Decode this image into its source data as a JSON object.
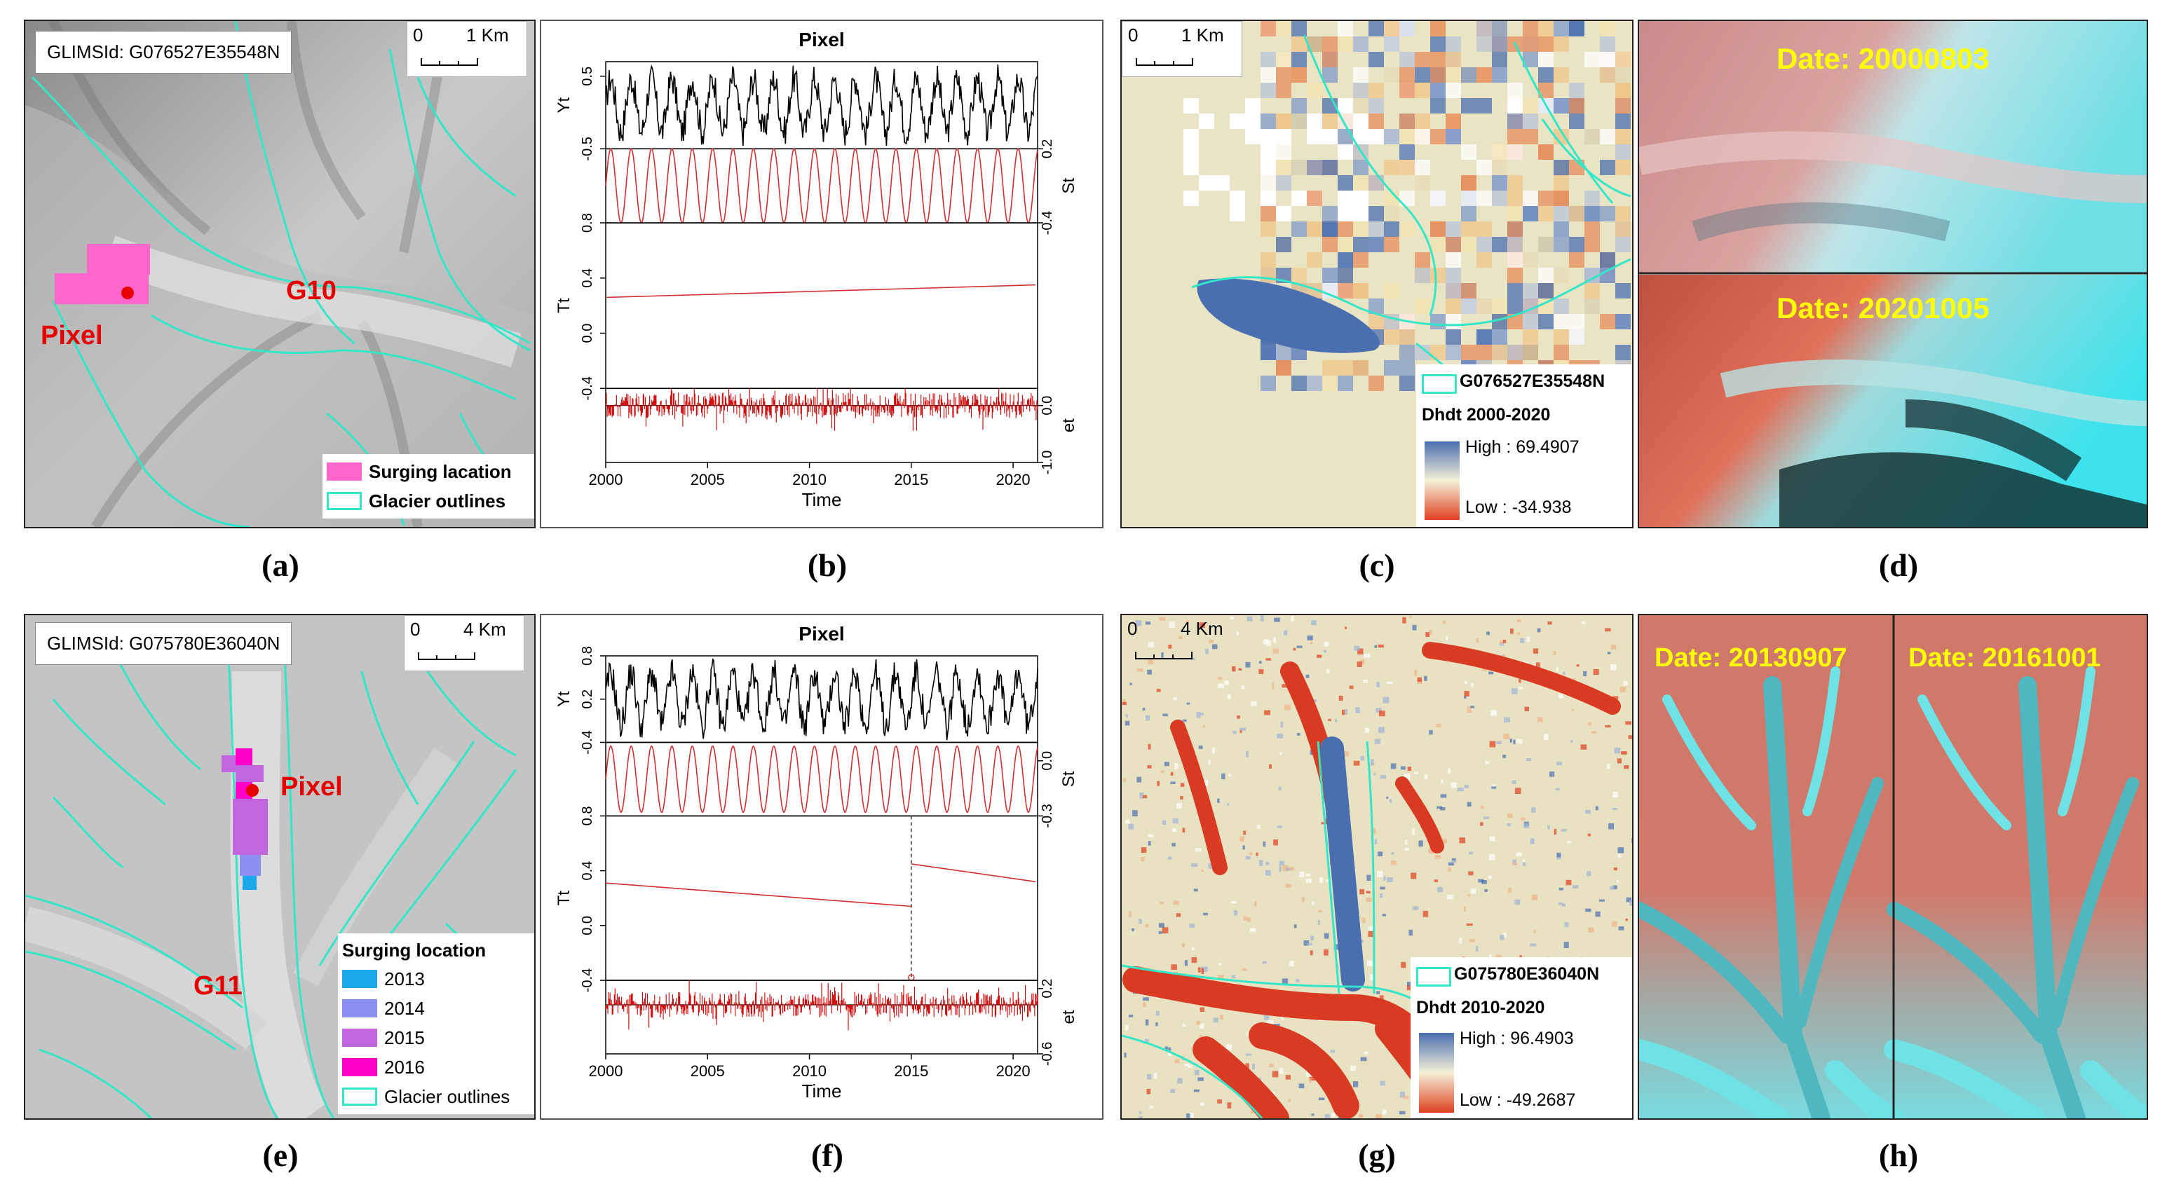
{
  "panels": {
    "a": {
      "caption": "(a)",
      "glims_id": "GLIMSId: G076527E35548N",
      "scale_zero": "0",
      "scale_label": "1 Km",
      "pixel_label": "Pixel",
      "glacier_label": "G10",
      "legend": [
        {
          "label": "Surging lacation",
          "color": "#ff66cc",
          "kind": "fill"
        },
        {
          "label": "Glacier outlines",
          "color": "#33e6c8",
          "kind": "outline"
        }
      ]
    },
    "b": {
      "caption": "(b)",
      "title": "Pixel",
      "xlabel": "Time"
    },
    "c": {
      "caption": "(c)",
      "scale_zero": "0",
      "scale_label": "1 Km",
      "outline_label": "G076527E35548N",
      "dhdt_title": "Dhdt 2000-2020",
      "high_label": "High : 69.4907",
      "low_label": "Low : -34.938"
    },
    "d": {
      "caption": "(d)",
      "date_top": "Date: 20000803",
      "date_bottom": "Date: 20201005"
    },
    "e": {
      "caption": "(e)",
      "glims_id": "GLIMSId: G075780E36040N",
      "scale_zero": "0",
      "scale_label": "4 Km",
      "pixel_label": "Pixel",
      "glacier_label": "G11",
      "legend_title": "Surging location",
      "legend": [
        {
          "label": "2013",
          "color": "#1aa7ec",
          "kind": "fill"
        },
        {
          "label": "2014",
          "color": "#8c8ff0",
          "kind": "fill"
        },
        {
          "label": "2015",
          "color": "#c266e0",
          "kind": "fill"
        },
        {
          "label": "2016",
          "color": "#ff00c8",
          "kind": "fill"
        },
        {
          "label": "Glacier outlines",
          "color": "#33e6c8",
          "kind": "outline"
        }
      ]
    },
    "f": {
      "caption": "(f)",
      "title": "Pixel",
      "xlabel": "Time"
    },
    "g": {
      "caption": "(g)",
      "scale_zero": "0",
      "scale_label": "4 Km",
      "outline_label": "G075780E36040N",
      "dhdt_title": "Dhdt 2010-2020",
      "high_label": "High : 96.4903",
      "low_label": "Low : -49.2687"
    },
    "h": {
      "caption": "(h)",
      "date_left": "Date: 20130907",
      "date_right": "Date: 20161001"
    }
  },
  "chart_data": [
    {
      "type": "line",
      "panel": "b",
      "title": "Pixel",
      "xlabel": "Time",
      "x_range": [
        2000,
        2021.2
      ],
      "x_ticks": [
        2000,
        2005,
        2010,
        2015,
        2020
      ],
      "subplots": [
        {
          "name": "Yt",
          "ylim": [
            -0.5,
            0.7
          ],
          "y_ticks": [
            -0.5,
            0.5
          ],
          "axis_side": "left",
          "series": "observed",
          "color": "#000000"
        },
        {
          "name": "St",
          "ylim": [
            -0.4,
            0.2
          ],
          "y_ticks": [
            -0.4,
            0.2
          ],
          "axis_side": "right",
          "series": "seasonal",
          "cycles_per_year": 1,
          "amplitude": 0.3,
          "color": "#d03030"
        },
        {
          "name": "Tt",
          "ylim": [
            -0.4,
            0.8
          ],
          "y_ticks": [
            -0.4,
            0.0,
            0.4,
            0.8
          ],
          "axis_side": "left",
          "series": "trend",
          "start": 0.26,
          "end": 0.35,
          "color": "#d03030"
        },
        {
          "name": "et",
          "ylim": [
            -1.0,
            0.3
          ],
          "y_ticks": [
            -1.0,
            0.0
          ],
          "axis_side": "right",
          "series": "remainder",
          "color": "#d01010"
        }
      ]
    },
    {
      "type": "line",
      "panel": "f",
      "title": "Pixel",
      "xlabel": "Time",
      "x_range": [
        2000,
        2021.2
      ],
      "x_ticks": [
        2000,
        2005,
        2010,
        2015,
        2020
      ],
      "subplots": [
        {
          "name": "Yt",
          "ylim": [
            -0.4,
            0.8
          ],
          "y_ticks": [
            -0.4,
            0.2,
            0.8
          ],
          "axis_side": "left",
          "series": "observed",
          "color": "#000000"
        },
        {
          "name": "St",
          "ylim": [
            -0.3,
            0.1
          ],
          "y_ticks": [
            -0.3,
            0.0
          ],
          "axis_side": "right",
          "series": "seasonal",
          "cycles_per_year": 1,
          "amplitude": 0.18,
          "color": "#d03030"
        },
        {
          "name": "Tt",
          "ylim": [
            -0.4,
            0.8
          ],
          "y_ticks": [
            -0.4,
            0.0,
            0.4,
            0.8
          ],
          "axis_side": "left",
          "series": "trend",
          "segments": [
            [
              2000,
              0.31,
              2015,
              0.14
            ],
            [
              2015,
              0.45,
              2021.1,
              0.32
            ]
          ],
          "breakpoint": 2015,
          "color": "#d03030"
        },
        {
          "name": "et",
          "ylim": [
            -0.6,
            0.3
          ],
          "y_ticks": [
            -0.6,
            0.2
          ],
          "axis_side": "right",
          "series": "remainder",
          "color": "#d01010"
        }
      ]
    }
  ]
}
